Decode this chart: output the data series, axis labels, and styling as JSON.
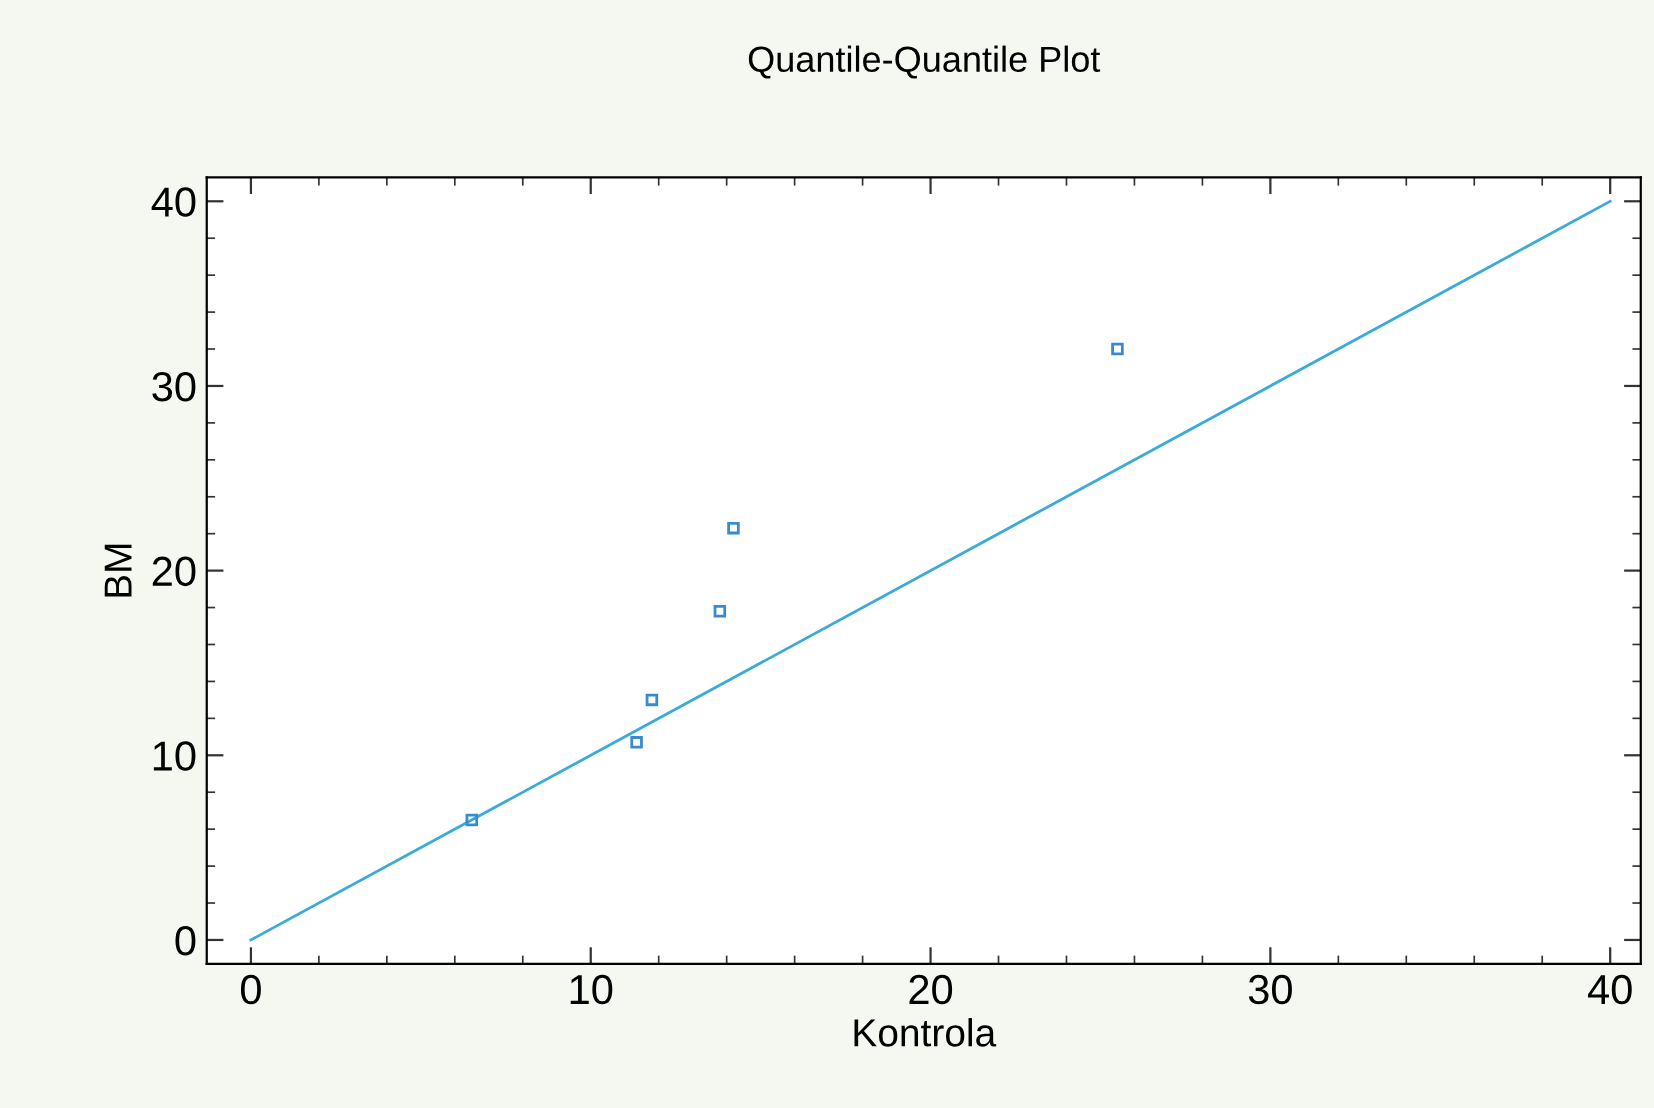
{
  "chart_data": {
    "type": "scatter",
    "title": "Quantile-Quantile Plot",
    "xlabel": "Kontrola",
    "ylabel": "BM",
    "xlim": [
      -1.3,
      40.9
    ],
    "ylim": [
      -1.3,
      41.3
    ],
    "xticks": [
      0,
      10,
      20,
      30,
      40
    ],
    "yticks": [
      0,
      10,
      20,
      30,
      40
    ],
    "grid": false,
    "legend": false,
    "series": [
      {
        "marker": "square",
        "color": "#3a8ad0",
        "x": [
          6.5,
          11.35,
          11.8,
          13.8,
          14.2,
          25.5
        ],
        "values": [
          6.5,
          10.7,
          13.0,
          17.8,
          22.3,
          32.0
        ]
      },
      {
        "type": "line",
        "marker": "none",
        "color": "#3aaad8",
        "x": [
          0,
          40
        ],
        "values": [
          0,
          40
        ]
      }
    ]
  }
}
